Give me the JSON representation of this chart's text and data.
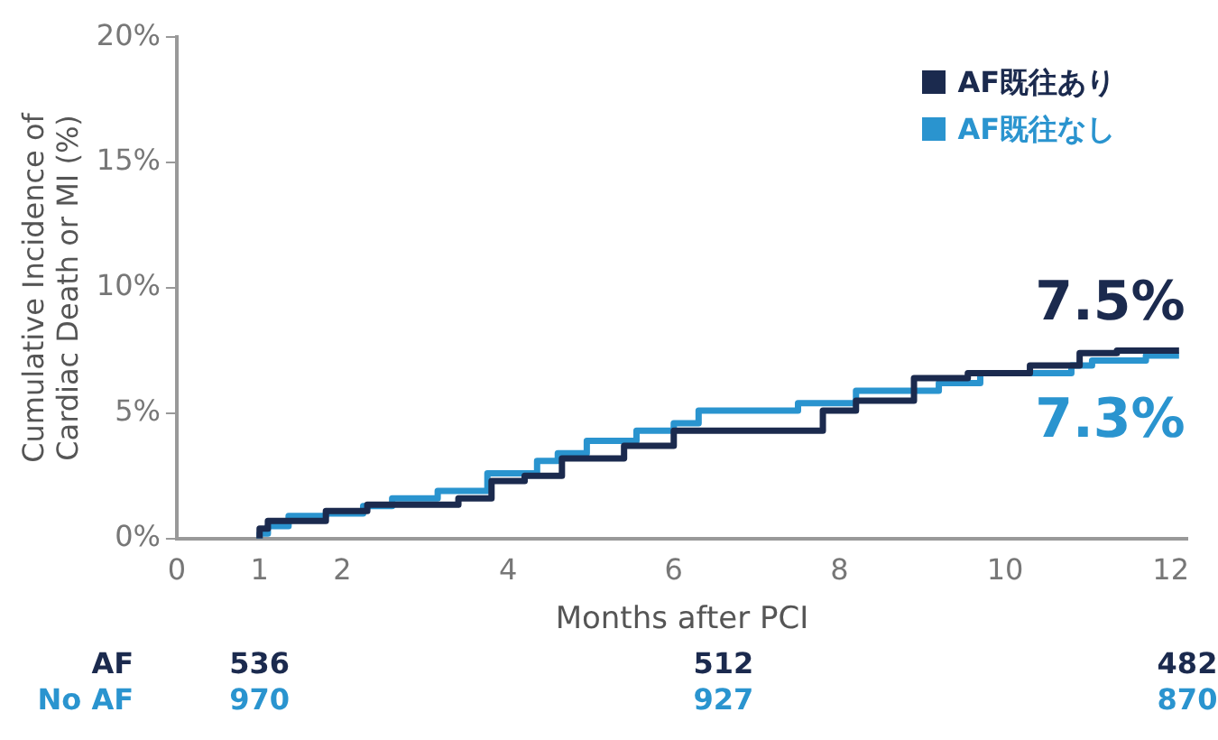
{
  "chart_data": {
    "type": "step",
    "xlabel": "Months after PCI",
    "ylabel": "Cumulative Incidence of Cardiac Death or MI (%)",
    "xlim": [
      0,
      12.2
    ],
    "xticks": [
      0,
      1,
      2,
      4,
      6,
      8,
      10,
      12
    ],
    "ylim": [
      0,
      20
    ],
    "yticks": [
      {
        "value": 0,
        "label": "0%"
      },
      {
        "value": 5,
        "label": "5%"
      },
      {
        "value": 10,
        "label": "10%"
      },
      {
        "value": 15,
        "label": "15%"
      },
      {
        "value": 20,
        "label": "20%"
      }
    ],
    "grid": false,
    "legend": "top right",
    "marker": "none",
    "line_style": "solid",
    "series": [
      {
        "name": "AF既往あり",
        "color": "#1b2a4e",
        "x": [
          1,
          1.1,
          1.8,
          2.3,
          3.4,
          3.8,
          4.2,
          4.65,
          5.4,
          6.0,
          7.8,
          8.2,
          8.9,
          9.55,
          10.3,
          10.9,
          11.35,
          11.5,
          12.1
        ],
        "values": [
          0,
          0.4,
          0.7,
          1.1,
          1.35,
          1.6,
          2.3,
          2.5,
          3.2,
          3.7,
          4.3,
          5.1,
          5.5,
          6.4,
          6.6,
          6.9,
          7.4,
          7.5,
          7.5
        ]
      },
      {
        "name": "AF既往なし",
        "color": "#2a94cf",
        "x": [
          1,
          1.1,
          1.35,
          1.8,
          2.25,
          2.6,
          3.15,
          3.75,
          4.35,
          4.6,
          4.95,
          5.55,
          6.0,
          6.3,
          7.5,
          8.2,
          9.2,
          9.7,
          10.8,
          11.05,
          11.7,
          12.1
        ],
        "values": [
          0,
          0.2,
          0.5,
          0.9,
          1.0,
          1.3,
          1.6,
          1.9,
          2.6,
          3.1,
          3.4,
          3.9,
          4.3,
          4.6,
          5.1,
          5.4,
          5.9,
          6.2,
          6.6,
          6.9,
          7.1,
          7.3
        ]
      }
    ],
    "annotations": [
      {
        "text": "7.5%",
        "x": 12,
        "y": 7.5
      },
      {
        "text": "7.3%",
        "x": 12,
        "y": 7.3
      },
      "AF",
      "No AF",
      "536",
      "512",
      "482",
      "970",
      "927",
      "870"
    ]
  }
}
